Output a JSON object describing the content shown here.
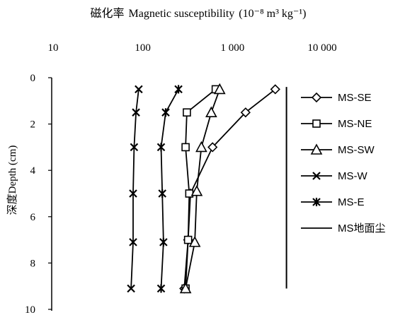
{
  "chart_data": {
    "type": "line",
    "title_cn": "磁化率",
    "title_en": "Magnetic susceptibility",
    "title_unit": "(10⁻⁸ m³ kg⁻¹)",
    "ylabel": "深度Depth (cm)",
    "x_scale": "log",
    "x_ticks": [
      "10",
      "100",
      "1 000",
      "10 000"
    ],
    "x_tick_values": [
      10,
      100,
      1000,
      10000
    ],
    "xlim": [
      10,
      10000
    ],
    "y_ticks": [
      "0",
      "2",
      "4",
      "6",
      "8",
      "10"
    ],
    "y_tick_values": [
      0,
      2,
      4,
      6,
      8,
      10
    ],
    "ylim": [
      0,
      10
    ],
    "y_inverted": true,
    "series": [
      {
        "name": "MS-SE",
        "marker": "diamond",
        "x": [
          3000,
          1400,
          600,
          340,
          320,
          290
        ],
        "y": [
          0.5,
          1.5,
          3,
          5,
          7,
          9.1
        ]
      },
      {
        "name": "MS-NE",
        "marker": "square",
        "x": [
          650,
          310,
          300,
          330,
          320,
          300
        ],
        "y": [
          0.5,
          1.5,
          3,
          5,
          7,
          9.1
        ]
      },
      {
        "name": "MS-SW",
        "marker": "triangle",
        "x": [
          720,
          580,
          450,
          400,
          380,
          300
        ],
        "y": [
          0.5,
          1.5,
          3,
          4.9,
          7.1,
          9.1
        ]
      },
      {
        "name": "MS-W",
        "marker": "x",
        "x": [
          90,
          84,
          80,
          78,
          78,
          74
        ],
        "y": [
          0.5,
          1.5,
          3,
          5,
          7.1,
          9.1
        ]
      },
      {
        "name": "MS-E",
        "marker": "star",
        "x": [
          250,
          180,
          160,
          165,
          170,
          160
        ],
        "y": [
          0.5,
          1.5,
          3,
          5,
          7.1,
          9.1
        ]
      },
      {
        "name": "MS地面尘",
        "marker": "none",
        "x": [
          4000,
          4000
        ],
        "y": [
          0.4,
          9.1
        ]
      }
    ]
  }
}
